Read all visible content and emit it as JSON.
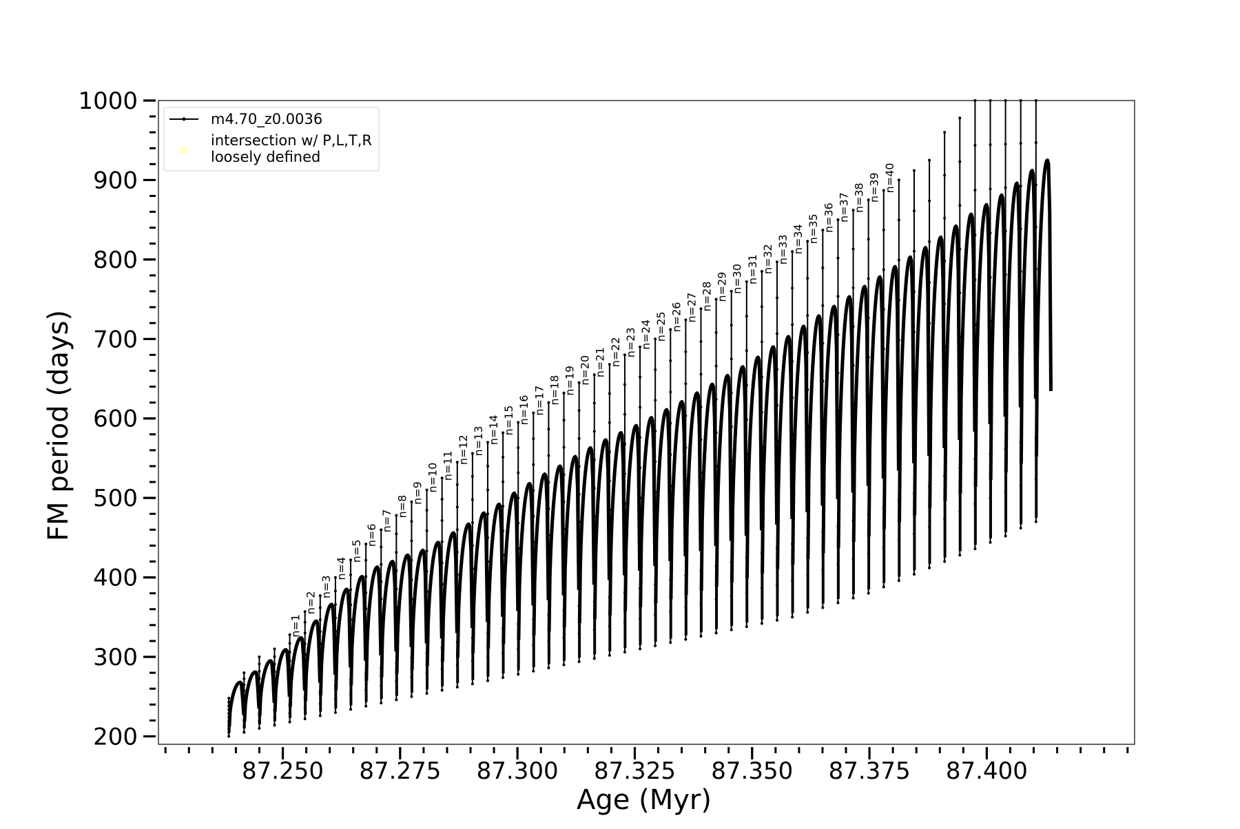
{
  "chart_data": {
    "type": "line",
    "xlabel": "Age (Myr)",
    "ylabel": "FM period (days)",
    "xlim": [
      87.2235,
      87.4315
    ],
    "ylim": [
      190,
      1000
    ],
    "xticks": [
      "87.250",
      "87.275",
      "87.300",
      "87.325",
      "87.350",
      "87.375",
      "87.400"
    ],
    "xtick_values": [
      87.25,
      87.275,
      87.3,
      87.325,
      87.35,
      87.375,
      87.4
    ],
    "yticks": [
      "200",
      "300",
      "400",
      "500",
      "600",
      "700",
      "800",
      "900",
      "1000"
    ],
    "ytick_values": [
      200,
      300,
      400,
      500,
      600,
      700,
      800,
      900,
      1000
    ],
    "series_color": "#000000",
    "legend": {
      "position": "top-left",
      "entries": [
        {
          "label": "m4.70_z0.0036",
          "marker": "line-with-dot",
          "color": "#000000"
        },
        {
          "label_lines": [
            "intersection w/ P,L,T,R",
            "loosely defined"
          ],
          "marker": "circle",
          "color": "#ffffcc"
        }
      ]
    },
    "pulse_cycles": {
      "description_of_values": "Each thermal-pulse cycle: start age (Myr), minimum period at spike base (days), spike peak period (days), bump top period (days)",
      "first_age": 87.2385,
      "age_spacing": 0.003245,
      "count": 54,
      "min_period": [
        200,
        205,
        210,
        214,
        218,
        222,
        226,
        230,
        234,
        238,
        242,
        246,
        250,
        254,
        258,
        262,
        266,
        270,
        274,
        278,
        282,
        286,
        290,
        294,
        298,
        302,
        306,
        310,
        314,
        318,
        322,
        326,
        330,
        334,
        338,
        342,
        346,
        350,
        356,
        362,
        368,
        374,
        380,
        388,
        396,
        404,
        412,
        420,
        428,
        436,
        444,
        452,
        462,
        470
      ],
      "bump_top": [
        268,
        281,
        295,
        309,
        324,
        345,
        366,
        385,
        401,
        413,
        420,
        428,
        434,
        444,
        456,
        467,
        481,
        492,
        506,
        518,
        530,
        540,
        552,
        563,
        573,
        582,
        591,
        601,
        611,
        621,
        632,
        643,
        654,
        665,
        677,
        690,
        703,
        716,
        729,
        741,
        753,
        766,
        778,
        791,
        803,
        815,
        828,
        842,
        857,
        869,
        881,
        896,
        912,
        925
      ],
      "spike_peak": [
        248,
        280,
        300,
        310,
        328,
        357,
        377,
        400,
        422,
        442,
        460,
        478,
        495,
        510,
        525,
        545,
        556,
        570,
        582,
        595,
        607,
        620,
        632,
        645,
        655,
        668,
        680,
        690,
        700,
        712,
        724,
        738,
        750,
        760,
        772,
        785,
        797,
        810,
        823,
        837,
        850,
        862,
        875,
        887,
        900,
        912,
        925,
        960,
        978,
        1000,
        1000,
        1000,
        1000,
        1000
      ]
    },
    "spike_labels": [
      "n=1",
      "n=2",
      "n=3",
      "n=4",
      "n=5",
      "n=6",
      "n=7",
      "n=8",
      "n=9",
      "n=10",
      "n=11",
      "n=12",
      "n=13",
      "n=14",
      "n=15",
      "n=16",
      "n=17",
      "n=18",
      "n=19",
      "n=20",
      "n=21",
      "n=22",
      "n=23",
      "n=24",
      "n=25",
      "n=26",
      "n=27",
      "n=28",
      "n=29",
      "n=30",
      "n=31",
      "n=32",
      "n=33",
      "n=34",
      "n=35",
      "n=36",
      "n=37",
      "n=38",
      "n=39",
      "n=40"
    ],
    "spike_label_offset": 4,
    "grid": false
  }
}
